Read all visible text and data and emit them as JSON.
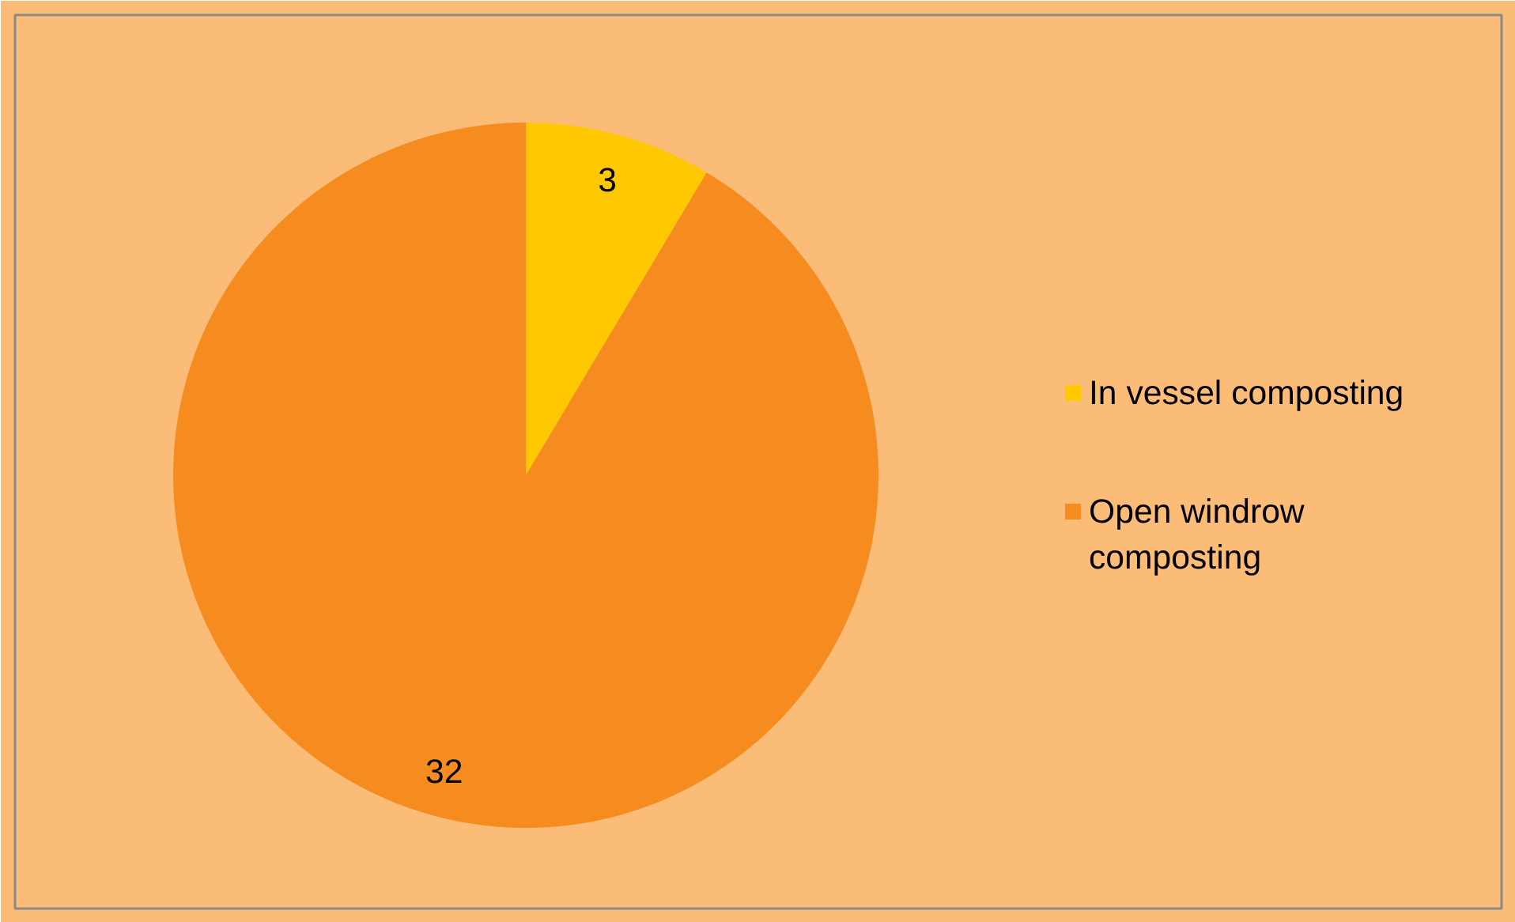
{
  "chart_data": {
    "type": "pie",
    "categories": [
      "In vessel composting",
      "Open windrow composting"
    ],
    "values": [
      3,
      32
    ],
    "colors": [
      "#ffc800",
      "#f68b1f"
    ],
    "data_labels": true,
    "legend": "right"
  }
}
